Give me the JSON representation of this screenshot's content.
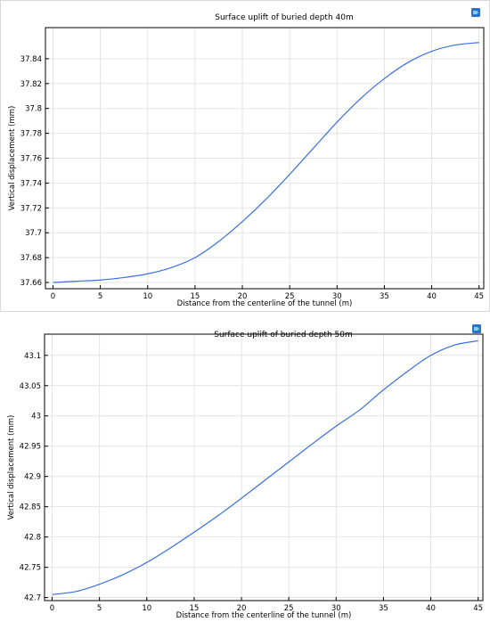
{
  "colors": {
    "line": "#3b6fe0",
    "grid": "#e3e3e3",
    "axis": "#000000",
    "background": "#ffffff"
  },
  "icons": [
    "plot-logo-icon",
    "plot-logo-icon"
  ],
  "chart_data": [
    {
      "type": "line",
      "title": "Surface uplift of buried depth 40m",
      "xlabel": "Distance from the centerline of the tunnel (m)",
      "ylabel": "Vertical displacement (mm)",
      "xlim": [
        -0.8,
        45.5
      ],
      "ylim": [
        37.655,
        37.865
      ],
      "xticks": [
        "0",
        "5",
        "10",
        "15",
        "20",
        "25",
        "30",
        "35",
        "40",
        "45"
      ],
      "yticks": [
        "37.66",
        "37.68",
        "37.7",
        "37.72",
        "37.74",
        "37.76",
        "37.78",
        "37.8",
        "37.82",
        "37.84"
      ],
      "grid": true,
      "series": [
        {
          "x": [
            0,
            2.5,
            5,
            7.5,
            10,
            12.5,
            15,
            17.5,
            20,
            22.5,
            25,
            27.5,
            30,
            32.5,
            35,
            37.5,
            40,
            42.5,
            45
          ],
          "y": [
            37.66,
            37.661,
            37.662,
            37.664,
            37.667,
            37.672,
            37.68,
            37.693,
            37.709,
            37.727,
            37.747,
            37.768,
            37.789,
            37.808,
            37.824,
            37.837,
            37.846,
            37.851,
            37.853
          ]
        }
      ]
    },
    {
      "type": "line",
      "title": "Surface uplift of buried depth 50m",
      "xlabel": "Distance from the centerline of the tunnel (m)",
      "ylabel": "Vertical displacement (mm)",
      "xlim": [
        -0.8,
        45.5
      ],
      "ylim": [
        42.695,
        43.135
      ],
      "xticks": [
        "0",
        "5",
        "10",
        "15",
        "20",
        "25",
        "30",
        "35",
        "40",
        "45"
      ],
      "yticks": [
        "42.7",
        "42.75",
        "42.8",
        "42.85",
        "42.9",
        "42.95",
        "43",
        "43.05",
        "43.1"
      ],
      "grid": true,
      "series": [
        {
          "x": [
            0,
            2.5,
            5,
            7.5,
            10,
            12.5,
            15,
            17.5,
            20,
            22.5,
            25,
            27.5,
            30,
            32.5,
            35,
            37.5,
            40,
            42.5,
            45
          ],
          "y": [
            42.705,
            42.71,
            42.722,
            42.738,
            42.758,
            42.782,
            42.808,
            42.835,
            42.864,
            42.894,
            42.924,
            42.954,
            42.983,
            43.01,
            43.043,
            43.073,
            43.1,
            43.117,
            43.124
          ]
        }
      ]
    }
  ]
}
